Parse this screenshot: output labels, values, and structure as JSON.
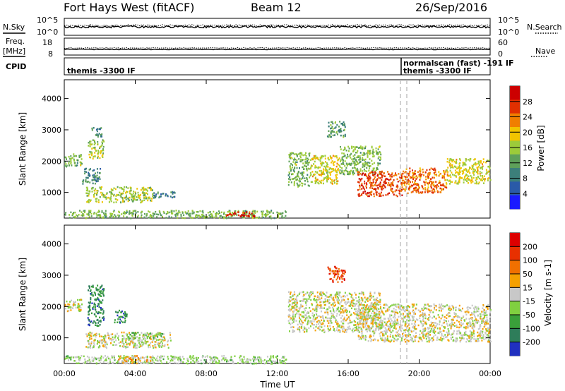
{
  "header": {
    "radar": "Fort Hays West (fitACF)",
    "beam": "Beam 12",
    "date": "26/Sep/2016"
  },
  "summary": {
    "nsky_label": "N.Sky",
    "nsearch_label": "N.Search",
    "noise_ticks": [
      "10^5",
      "10^0"
    ],
    "freq_label_1": "Freq.",
    "freq_label_2": "[MHz]",
    "freq_ticks": [
      "18",
      "8"
    ],
    "nave_label": "Nave",
    "nave_ticks": [
      "60",
      "0"
    ],
    "cpid_label": "CPID",
    "cpid_text_1": "themis -3300 IF",
    "cpid_text_2": "normalscan (fast) -191 IF",
    "cpid_text_3": "themis -3300 IF"
  },
  "chart_data": [
    {
      "type": "heatmap",
      "title": "",
      "xlabel": "Time UT",
      "ylabel": "Slant Range [km]",
      "xlim_hours": [
        0,
        24
      ],
      "ylim_km": [
        180,
        4600
      ],
      "x_tick_labels": [
        "00:00",
        "04:00",
        "08:00",
        "12:00",
        "16:00",
        "20:00",
        "00:00"
      ],
      "y_tick_labels": [
        "1000",
        "2000",
        "3000",
        "4000"
      ],
      "colorbar": {
        "label": "Power [dB]",
        "range": [
          0,
          32
        ],
        "tick_labels": [
          "4",
          "8",
          "12",
          "16",
          "20",
          "24",
          "28"
        ],
        "colors": [
          "#1a1aff",
          "#2a5aa8",
          "#3c7f7a",
          "#5ea05a",
          "#9ccb3a",
          "#f2c400",
          "#f07e00",
          "#e03000",
          "#cc0000"
        ]
      },
      "echo_regions": [
        {
          "t": [
            0.0,
            1.0
          ],
          "r": [
            1850,
            2250
          ],
          "v": 14
        },
        {
          "t": [
            1.3,
            2.2
          ],
          "r": [
            2100,
            2700
          ],
          "v": 16
        },
        {
          "t": [
            1.5,
            2.1
          ],
          "r": [
            2800,
            3100
          ],
          "v": 10
        },
        {
          "t": [
            1.0,
            2.0
          ],
          "r": [
            1300,
            1800
          ],
          "v": 10
        },
        {
          "t": [
            1.2,
            5.0
          ],
          "r": [
            700,
            1200
          ],
          "v": 16
        },
        {
          "t": [
            5.0,
            6.2
          ],
          "r": [
            850,
            1050
          ],
          "v": 8
        },
        {
          "t": [
            0.0,
            12.5
          ],
          "r": [
            200,
            450
          ],
          "v": 14
        },
        {
          "t": [
            9.0,
            10.8
          ],
          "r": [
            250,
            400
          ],
          "v": 28
        },
        {
          "t": [
            12.6,
            13.8
          ],
          "r": [
            1200,
            2300
          ],
          "v": 14
        },
        {
          "t": [
            13.8,
            15.5
          ],
          "r": [
            1300,
            2200
          ],
          "v": 18
        },
        {
          "t": [
            15.5,
            17.8
          ],
          "r": [
            1600,
            2500
          ],
          "v": 14
        },
        {
          "t": [
            16.5,
            19.0
          ],
          "r": [
            900,
            1700
          ],
          "v": 26
        },
        {
          "t": [
            19.0,
            21.5
          ],
          "r": [
            1000,
            1800
          ],
          "v": 24
        },
        {
          "t": [
            21.5,
            24.0
          ],
          "r": [
            1300,
            2100
          ],
          "v": 18
        },
        {
          "t": [
            14.8,
            15.8
          ],
          "r": [
            2800,
            3300
          ],
          "v": 12
        }
      ]
    },
    {
      "type": "heatmap",
      "title": "",
      "xlabel": "Time UT",
      "ylabel": "Slant Range [km]",
      "xlim_hours": [
        0,
        24
      ],
      "ylim_km": [
        180,
        4600
      ],
      "x_tick_labels": [
        "00:00",
        "04:00",
        "08:00",
        "12:00",
        "16:00",
        "20:00",
        "00:00"
      ],
      "y_tick_labels": [
        "1000",
        "2000",
        "3000",
        "4000"
      ],
      "colorbar": {
        "label": "Velocity [m s-1]",
        "range": [
          -250,
          250
        ],
        "tick_labels": [
          "200",
          "100",
          "50",
          "15",
          "-15",
          "-50",
          "-100",
          "-200"
        ],
        "colors": [
          "#2030c0",
          "#2e7d5a",
          "#3aa03a",
          "#80d040",
          "#c8c8c8",
          "#f5a000",
          "#f07000",
          "#e83000",
          "#dd0000"
        ]
      },
      "echo_regions": [
        {
          "t": [
            0.0,
            1.0
          ],
          "r": [
            1850,
            2250
          ],
          "v": 0
        },
        {
          "t": [
            1.3,
            2.2
          ],
          "r": [
            1400,
            2700
          ],
          "v": -150
        },
        {
          "t": [
            2.8,
            3.5
          ],
          "r": [
            1500,
            1900
          ],
          "v": -150
        },
        {
          "t": [
            1.2,
            6.0
          ],
          "r": [
            700,
            1200
          ],
          "v": 0
        },
        {
          "t": [
            3.5,
            5.5
          ],
          "r": [
            1000,
            1200
          ],
          "v": -60
        },
        {
          "t": [
            0.0,
            12.5
          ],
          "r": [
            200,
            450
          ],
          "v": -40
        },
        {
          "t": [
            3.0,
            5.0
          ],
          "r": [
            200,
            450
          ],
          "v": 40
        },
        {
          "t": [
            12.6,
            17.8
          ],
          "r": [
            1200,
            2500
          ],
          "v": 0
        },
        {
          "t": [
            16.5,
            24.0
          ],
          "r": [
            900,
            2100
          ],
          "v": 0
        },
        {
          "t": [
            14.8,
            15.8
          ],
          "r": [
            2800,
            3300
          ],
          "v": 150
        }
      ]
    }
  ]
}
